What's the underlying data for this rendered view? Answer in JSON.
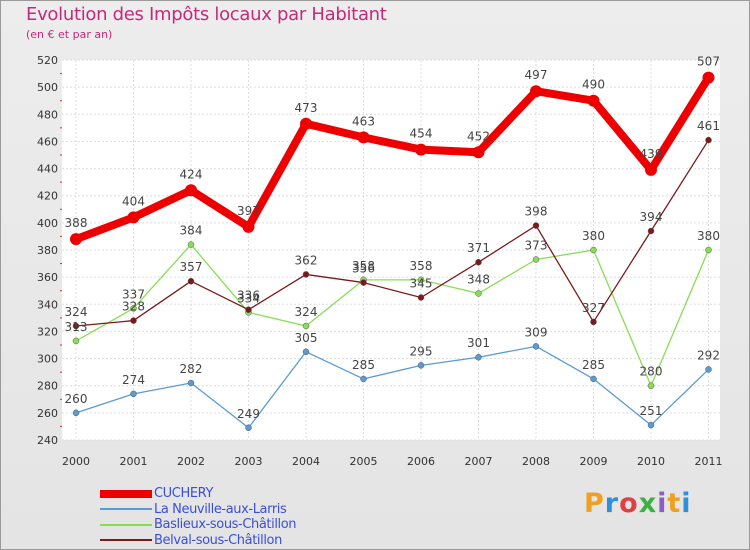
{
  "title": "Evolution des Impôts locaux par Habitant",
  "subtitle": "(en € et par an)",
  "logo": {
    "text": "Proxiti",
    "colors": [
      "#f0a020",
      "#2f8fd8",
      "#e04040",
      "#3cb040",
      "#8e5cc8",
      "#f0a020",
      "#2f8fd8"
    ]
  },
  "chart_data": {
    "type": "line",
    "title": "Evolution des Impôts locaux par Habitant",
    "subtitle": "(en € et par an)",
    "xlabel": "",
    "ylabel": "",
    "ylim": [
      240,
      520
    ],
    "yticks": [
      240,
      260,
      280,
      300,
      320,
      340,
      360,
      380,
      400,
      420,
      440,
      460,
      480,
      500,
      520
    ],
    "grid": true,
    "legend_position": "bottom-left",
    "x": [
      "2000",
      "2001",
      "2002",
      "2003",
      "2004",
      "2005",
      "2006",
      "2007",
      "2008",
      "2009",
      "2010",
      "2011"
    ],
    "series": [
      {
        "name": "CUCHERY",
        "color": "#ee0000",
        "values": [
          388,
          404,
          424,
          397,
          473,
          463,
          454,
          452,
          497,
          490,
          439,
          507
        ],
        "labels": [
          "388",
          "404",
          "424",
          "397",
          "473",
          "463",
          "454",
          "452",
          "497",
          "490",
          "439",
          "507"
        ]
      },
      {
        "name": "La Neuville-aux-Larris",
        "color": "#5a9bd4",
        "values": [
          260,
          274,
          282,
          249,
          305,
          285,
          295,
          301,
          309,
          285,
          251,
          292
        ],
        "labels": [
          "260",
          "274",
          "282",
          "249",
          "305",
          "285",
          "295",
          "301",
          "309",
          "285",
          "251",
          "292"
        ]
      },
      {
        "name": "Baslieux-sous-Châtillon",
        "color": "#88dd55",
        "values": [
          313,
          337,
          384,
          334,
          324,
          358,
          358,
          348,
          373,
          380,
          280,
          380
        ],
        "labels": [
          "313",
          "337",
          "384",
          "334",
          "324",
          "358",
          "358",
          "348",
          "373",
          "380",
          "280",
          "380"
        ]
      },
      {
        "name": "Belval-sous-Châtillon",
        "color": "#7a1a1a",
        "values": [
          324,
          328,
          357,
          336,
          362,
          356,
          345,
          371,
          398,
          327,
          394,
          461
        ],
        "labels": [
          "324",
          "328",
          "357",
          "336",
          "362",
          "356",
          "345",
          "371",
          "398",
          "327",
          "394",
          "461"
        ]
      }
    ]
  }
}
